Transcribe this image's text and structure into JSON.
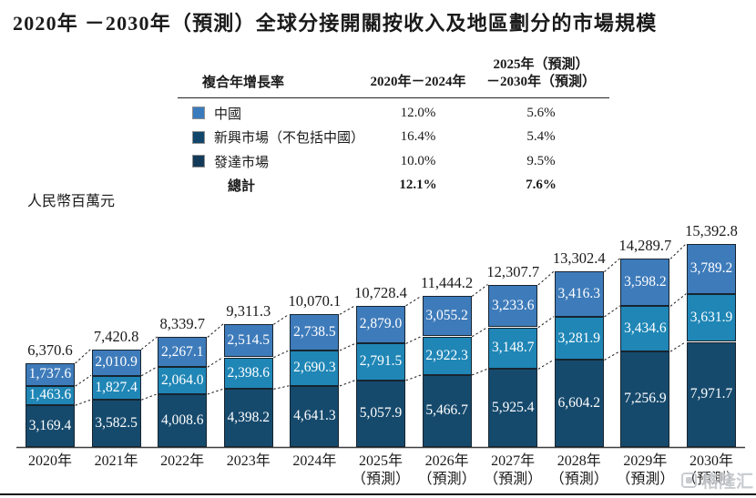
{
  "page": {
    "title": "2020年 －2030年（預測）全球分接開關按收入及地區劃分的市場規模",
    "unit_label": "人民幣百萬元",
    "watermark": "格隆汇"
  },
  "cagr_table": {
    "col_header_metric": "複合年增長率",
    "col_header_period1": "2020年－2024年",
    "col_header_period2_line1": "2025年（預測）",
    "col_header_period2_line2": "－2030年（預測）",
    "rows": [
      {
        "label": "中國",
        "cagr_2020_2024": "12.0%",
        "cagr_2025_2030": "5.6%",
        "swatch_color": "#3a7bbd"
      },
      {
        "label": "新興市場（不包括中國）",
        "cagr_2020_2024": "16.4%",
        "cagr_2025_2030": "5.4%",
        "swatch_color": "#12466a"
      },
      {
        "label": "發達市場",
        "cagr_2020_2024": "10.0%",
        "cagr_2025_2030": "9.5%",
        "swatch_color": "#143a59"
      }
    ],
    "total_row": {
      "label": "總計",
      "cagr_2020_2024": "12.1%",
      "cagr_2025_2030": "7.6%"
    }
  },
  "chart_data": {
    "type": "bar",
    "stacked": true,
    "title": "2020年 －2030年（預測）全球分接開關按收入及地區劃分的市場規模",
    "ylabel": "人民幣百萬元",
    "xlabel": "",
    "grid": false,
    "legend_position": "top-table",
    "ylim": [
      0,
      15392.8
    ],
    "categories": [
      {
        "year": "2020年",
        "note": ""
      },
      {
        "year": "2021年",
        "note": ""
      },
      {
        "year": "2022年",
        "note": ""
      },
      {
        "year": "2023年",
        "note": ""
      },
      {
        "year": "2024年",
        "note": ""
      },
      {
        "year": "2025年",
        "note": "（預測）"
      },
      {
        "year": "2026年",
        "note": "（預測）"
      },
      {
        "year": "2027年",
        "note": "（預測）"
      },
      {
        "year": "2028年",
        "note": "（預測）"
      },
      {
        "year": "2029年",
        "note": "（預測）"
      },
      {
        "year": "2030年",
        "note": "（預測）"
      }
    ],
    "series": [
      {
        "name": "發達市場",
        "key": "developed",
        "color": "#164a6d",
        "values": [
          3169.4,
          3582.5,
          4008.6,
          4398.2,
          4641.3,
          5057.9,
          5466.7,
          5925.4,
          6604.2,
          7256.9,
          7971.7
        ]
      },
      {
        "name": "新興市場（不包括中國）",
        "key": "emerging",
        "color": "#1f86b6",
        "values": [
          1463.6,
          1827.4,
          2064.0,
          2398.6,
          2690.3,
          2791.5,
          2922.3,
          3148.7,
          3281.9,
          3434.6,
          3631.9
        ]
      },
      {
        "name": "中國",
        "key": "china",
        "color": "#3e7bba",
        "values": [
          1737.6,
          2010.9,
          2267.1,
          2514.5,
          2738.5,
          2879.0,
          3055.2,
          3233.6,
          3416.3,
          3598.2,
          3789.2
        ]
      }
    ],
    "totals": [
      6370.6,
      7420.8,
      8339.7,
      9311.3,
      10070.1,
      10728.4,
      11444.2,
      12307.7,
      13302.4,
      14289.7,
      15392.8
    ]
  }
}
